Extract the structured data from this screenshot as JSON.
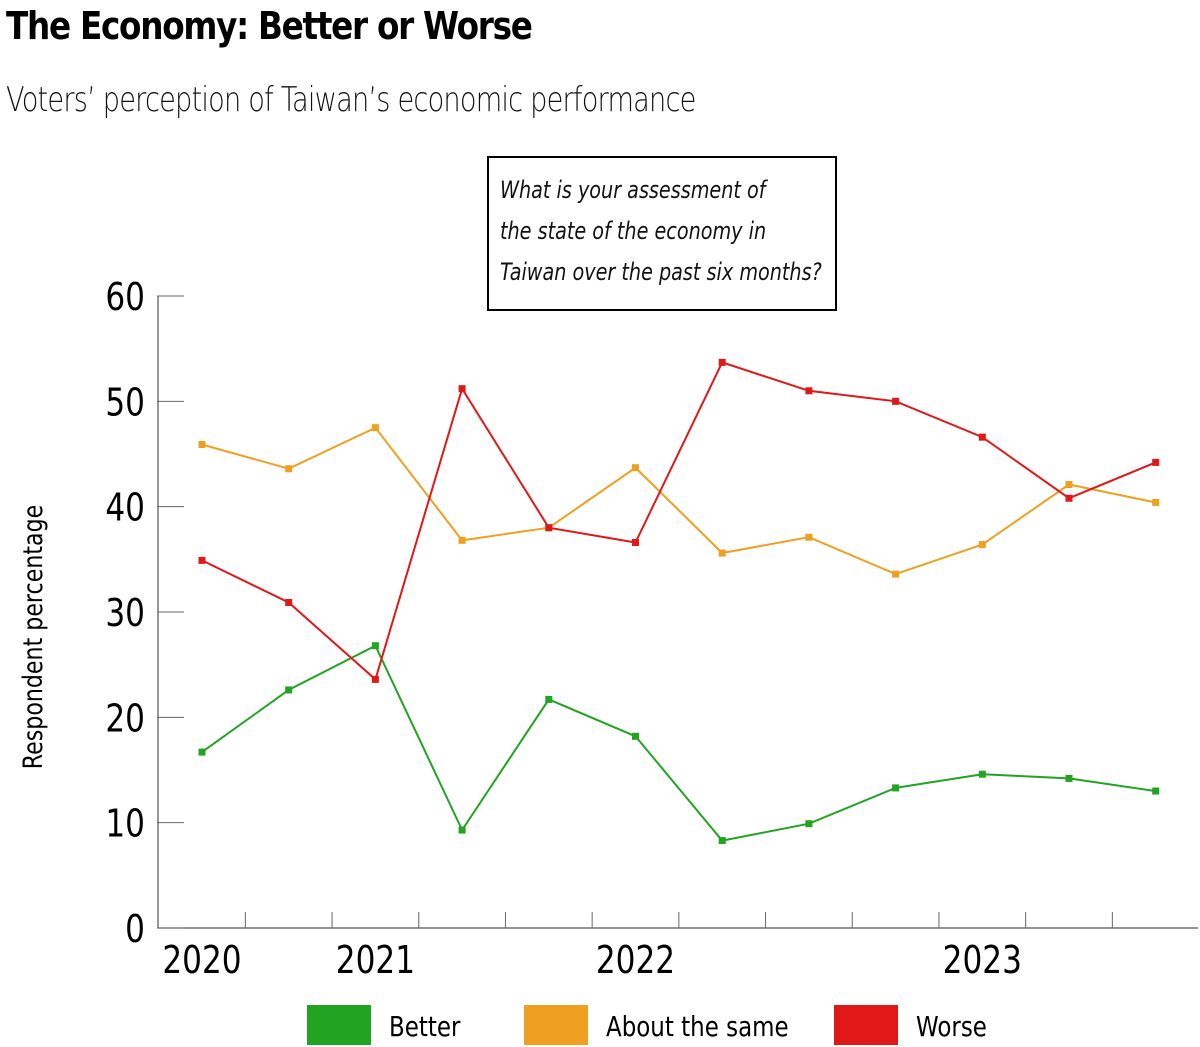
{
  "header": {
    "title": "The Economy: Better or Worse",
    "subtitle": "Voters’ perception of Taiwan’s economic performance"
  },
  "chart_data": {
    "type": "line",
    "title": "The Economy: Better or Worse",
    "subtitle": "Voters’ perception of Taiwan’s economic performance",
    "annotation": [
      "What is your assessment of",
      "the state of the economy in",
      "Taiwan over the past six months?"
    ],
    "xlabel": "",
    "ylabel": "Respondent percentage",
    "ylim": [
      0,
      60
    ],
    "yticks": [
      "0",
      "10",
      "20",
      "30",
      "40",
      "50",
      "60"
    ],
    "xtick_labels": [
      {
        "label": "2020",
        "at_point": 0
      },
      {
        "label": "2021",
        "at_point": 2
      },
      {
        "label": "2022",
        "at_point": 5
      },
      {
        "label": "2023",
        "at_point": 9
      }
    ],
    "n_points": 12,
    "grid": false,
    "legend_position": "bottom",
    "series": [
      {
        "name": "Better",
        "color": "#22a422",
        "values": [
          16.7,
          22.6,
          26.8,
          9.3,
          21.7,
          18.2,
          8.3,
          9.9,
          13.3,
          14.6,
          14.2,
          13.0
        ]
      },
      {
        "name": "About the same",
        "color": "#f0a020",
        "values": [
          45.9,
          43.6,
          47.5,
          36.8,
          38.0,
          43.7,
          35.6,
          37.1,
          33.6,
          36.4,
          42.1,
          40.4
        ]
      },
      {
        "name": "Worse",
        "color": "#e01818",
        "values": [
          34.9,
          30.9,
          23.6,
          51.2,
          38.0,
          36.6,
          53.7,
          51.0,
          50.0,
          46.6,
          40.8,
          44.2
        ]
      }
    ]
  }
}
